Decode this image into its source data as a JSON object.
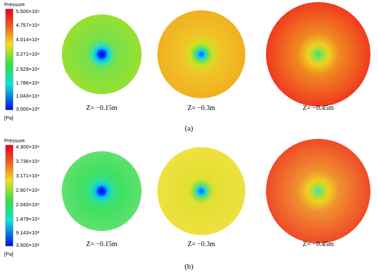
{
  "panels": [
    {
      "label": "(a)",
      "legend": {
        "title": "Pressure",
        "ticks": [
          "5.500×10⁴",
          "4.757×10⁴",
          "4.014×10⁴",
          "3.271×10⁴",
          "2.529×10⁴",
          "1.786×10⁴",
          "1.043×10⁴",
          "3.000×10³"
        ],
        "unit": "[Pa]"
      },
      "slices": [
        "Z= −0.15m",
        "Z= −0.3m",
        "Z= −0.45m"
      ]
    },
    {
      "label": "(b)",
      "legend": {
        "title": "Pressure",
        "ticks": [
          "4.300×10⁴",
          "3.736×10⁴",
          "3.171×10⁴",
          "2.607×10⁴",
          "2.043×10⁴",
          "1.479×10⁴",
          "9.143×10³",
          "3.500×10³"
        ],
        "unit": "[Pa]"
      },
      "slices": [
        "Z= −0.15m",
        "Z= −0.3m",
        "Z= −0.45m"
      ]
    }
  ]
}
